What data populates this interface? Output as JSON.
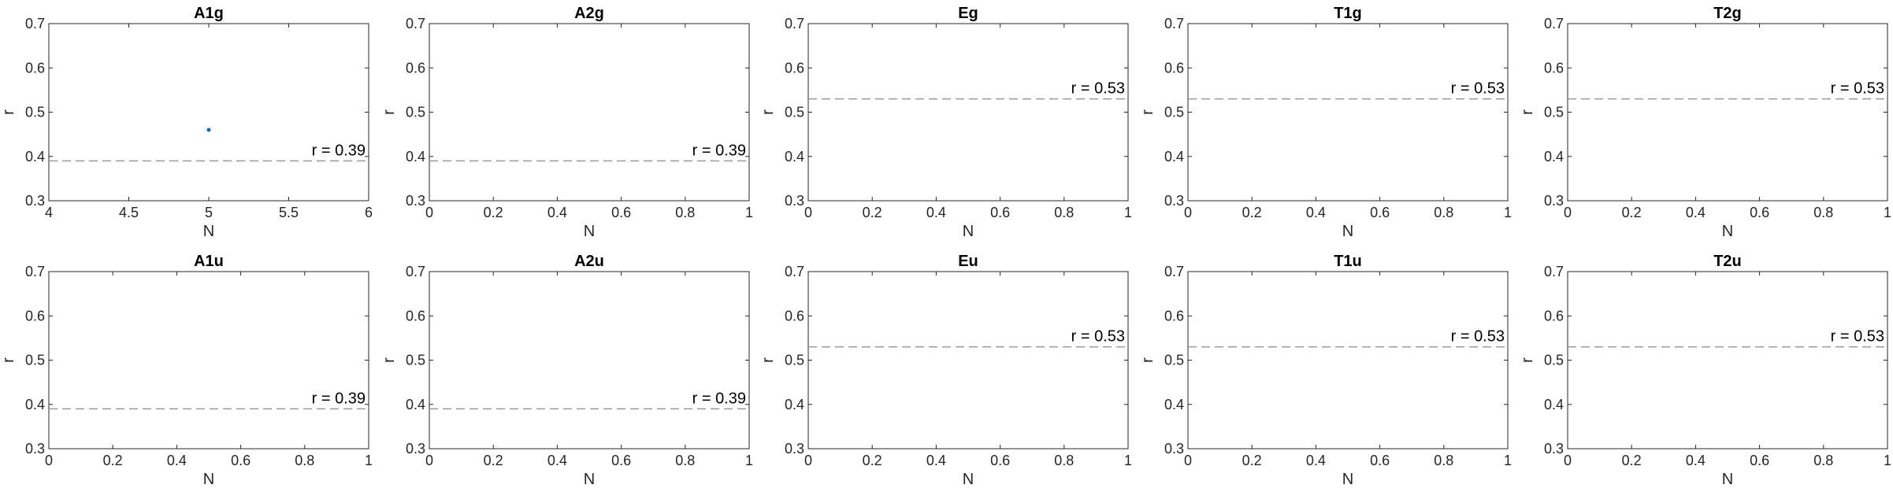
{
  "chart_data": [
    {
      "type": "scatter",
      "title": "A1g",
      "xlabel": "N",
      "ylabel": "r",
      "xlim": [
        4,
        6
      ],
      "ylim": [
        0.3,
        0.7
      ],
      "xticks": [
        "4",
        "4.5",
        "5",
        "5.5",
        "6"
      ],
      "yticks": [
        "0.3",
        "0.4",
        "0.5",
        "0.6",
        "0.7"
      ],
      "points": [
        {
          "x": 5,
          "y": 0.46
        }
      ],
      "ref_line": {
        "y": 0.39,
        "label": "r = 0.39"
      }
    },
    {
      "type": "scatter",
      "title": "A2g",
      "xlabel": "N",
      "ylabel": "r",
      "xlim": [
        0,
        1
      ],
      "ylim": [
        0.3,
        0.7
      ],
      "xticks": [
        "0",
        "0.2",
        "0.4",
        "0.6",
        "0.8",
        "1"
      ],
      "yticks": [
        "0.3",
        "0.4",
        "0.5",
        "0.6",
        "0.7"
      ],
      "points": [],
      "ref_line": {
        "y": 0.39,
        "label": "r = 0.39"
      }
    },
    {
      "type": "scatter",
      "title": "Eg",
      "xlabel": "N",
      "ylabel": "r",
      "xlim": [
        0,
        1
      ],
      "ylim": [
        0.3,
        0.7
      ],
      "xticks": [
        "0",
        "0.2",
        "0.4",
        "0.6",
        "0.8",
        "1"
      ],
      "yticks": [
        "0.3",
        "0.4",
        "0.5",
        "0.6",
        "0.7"
      ],
      "points": [],
      "ref_line": {
        "y": 0.53,
        "label": "r = 0.53"
      }
    },
    {
      "type": "scatter",
      "title": "T1g",
      "xlabel": "N",
      "ylabel": "r",
      "xlim": [
        0,
        1
      ],
      "ylim": [
        0.3,
        0.7
      ],
      "xticks": [
        "0",
        "0.2",
        "0.4",
        "0.6",
        "0.8",
        "1"
      ],
      "yticks": [
        "0.3",
        "0.4",
        "0.5",
        "0.6",
        "0.7"
      ],
      "points": [],
      "ref_line": {
        "y": 0.53,
        "label": "r = 0.53"
      }
    },
    {
      "type": "scatter",
      "title": "T2g",
      "xlabel": "N",
      "ylabel": "r",
      "xlim": [
        0,
        1
      ],
      "ylim": [
        0.3,
        0.7
      ],
      "xticks": [
        "0",
        "0.2",
        "0.4",
        "0.6",
        "0.8",
        "1"
      ],
      "yticks": [
        "0.3",
        "0.4",
        "0.5",
        "0.6",
        "0.7"
      ],
      "points": [],
      "ref_line": {
        "y": 0.53,
        "label": "r = 0.53"
      }
    },
    {
      "type": "scatter",
      "title": "A1u",
      "xlabel": "N",
      "ylabel": "r",
      "xlim": [
        0,
        1
      ],
      "ylim": [
        0.3,
        0.7
      ],
      "xticks": [
        "0",
        "0.2",
        "0.4",
        "0.6",
        "0.8",
        "1"
      ],
      "yticks": [
        "0.3",
        "0.4",
        "0.5",
        "0.6",
        "0.7"
      ],
      "points": [],
      "ref_line": {
        "y": 0.39,
        "label": "r = 0.39"
      }
    },
    {
      "type": "scatter",
      "title": "A2u",
      "xlabel": "N",
      "ylabel": "r",
      "xlim": [
        0,
        1
      ],
      "ylim": [
        0.3,
        0.7
      ],
      "xticks": [
        "0",
        "0.2",
        "0.4",
        "0.6",
        "0.8",
        "1"
      ],
      "yticks": [
        "0.3",
        "0.4",
        "0.5",
        "0.6",
        "0.7"
      ],
      "points": [],
      "ref_line": {
        "y": 0.39,
        "label": "r = 0.39"
      }
    },
    {
      "type": "scatter",
      "title": "Eu",
      "xlabel": "N",
      "ylabel": "r",
      "xlim": [
        0,
        1
      ],
      "ylim": [
        0.3,
        0.7
      ],
      "xticks": [
        "0",
        "0.2",
        "0.4",
        "0.6",
        "0.8",
        "1"
      ],
      "yticks": [
        "0.3",
        "0.4",
        "0.5",
        "0.6",
        "0.7"
      ],
      "points": [],
      "ref_line": {
        "y": 0.53,
        "label": "r = 0.53"
      }
    },
    {
      "type": "scatter",
      "title": "T1u",
      "xlabel": "N",
      "ylabel": "r",
      "xlim": [
        0,
        1
      ],
      "ylim": [
        0.3,
        0.7
      ],
      "xticks": [
        "0",
        "0.2",
        "0.4",
        "0.6",
        "0.8",
        "1"
      ],
      "yticks": [
        "0.3",
        "0.4",
        "0.5",
        "0.6",
        "0.7"
      ],
      "points": [],
      "ref_line": {
        "y": 0.53,
        "label": "r = 0.53"
      }
    },
    {
      "type": "scatter",
      "title": "T2u",
      "xlabel": "N",
      "ylabel": "r",
      "xlim": [
        0,
        1
      ],
      "ylim": [
        0.3,
        0.7
      ],
      "xticks": [
        "0",
        "0.2",
        "0.4",
        "0.6",
        "0.8",
        "1"
      ],
      "yticks": [
        "0.3",
        "0.4",
        "0.5",
        "0.6",
        "0.7"
      ],
      "points": [],
      "ref_line": {
        "y": 0.53,
        "label": "r = 0.53"
      }
    }
  ],
  "colors": {
    "marker": "#0072BD",
    "ref_line": "#999999",
    "axes": "#262626"
  }
}
